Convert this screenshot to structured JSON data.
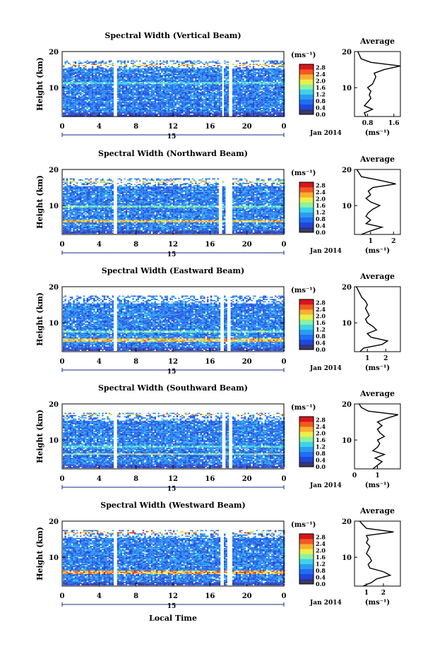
{
  "shared": {
    "ylabel": "Height (km)",
    "x_ticks": [
      "0",
      "4",
      "8",
      "12",
      "16",
      "20",
      "0"
    ],
    "y_ticks": [
      "10",
      "20"
    ],
    "date_day": "15",
    "date_label": "Jan 2014",
    "colorbar_unit": "(ms⁻¹)",
    "colorbar_ticks": [
      "0.0",
      "0.4",
      "0.8",
      "1.2",
      "1.6",
      "2.0",
      "2.4",
      "2.8"
    ],
    "avg_title": "Average",
    "avg_xlabel": "(ms⁻¹)",
    "xlabel_bottom": "Local Time",
    "colors": {
      "colormap": [
        "#2b2f8f",
        "#1f47d8",
        "#1f6ef5",
        "#2a9df0",
        "#3dd4e8",
        "#8ff0a0",
        "#e8f04a",
        "#f7b030",
        "#f05a20",
        "#d8141c"
      ],
      "lowest_bin": "#3a3a60"
    }
  },
  "chart_data": [
    {
      "type": "heatmap",
      "title": "Spectral Width (Vertical Beam)",
      "x_range_hours": [
        0,
        24
      ],
      "y_range_km": [
        2,
        20
      ],
      "data_gaps_hours": [
        [
          5.4,
          5.9
        ],
        [
          17.2,
          17.5
        ],
        [
          17.9,
          18.3
        ]
      ],
      "layers_km": [
        [
          16.0,
          16.8,
          2.6
        ],
        [
          11.0,
          11.8,
          1.6
        ]
      ],
      "colorbar_range": [
        0.0,
        3.0
      ],
      "average_profile": {
        "xtick_labels": [
          "0.8",
          "1.6"
        ],
        "xlim": [
          0.4,
          1.8
        ],
        "height_km": [
          2,
          3,
          4,
          5,
          6,
          7,
          8,
          9,
          10,
          11,
          12,
          13,
          14,
          15,
          16,
          17,
          18,
          19,
          20
        ],
        "value": [
          0.75,
          0.7,
          0.95,
          0.7,
          0.8,
          0.9,
          0.85,
          0.9,
          0.8,
          0.95,
          1.0,
          1.05,
          1.0,
          1.3,
          1.8,
          0.9,
          0.6,
          0.55,
          0.5
        ]
      }
    },
    {
      "type": "heatmap",
      "title": "Spectral Width (Northward Beam)",
      "x_range_hours": [
        0,
        24
      ],
      "y_range_km": [
        2,
        20
      ],
      "data_gaps_hours": [
        [
          5.4,
          5.9
        ],
        [
          16.9,
          17.2
        ],
        [
          17.6,
          18.3
        ]
      ],
      "layers_km": [
        [
          16.5,
          17.0,
          2.4
        ],
        [
          5.5,
          6.2,
          2.6
        ],
        [
          9.5,
          10.2,
          1.8
        ]
      ],
      "colorbar_range": [
        0.0,
        3.0
      ],
      "average_profile": {
        "xtick_labels": [
          "1",
          "2"
        ],
        "xlim": [
          0.3,
          2.3
        ],
        "height_km": [
          2,
          3,
          4,
          5,
          6,
          7,
          8,
          9,
          10,
          11,
          12,
          13,
          14,
          15,
          16,
          17,
          18,
          19,
          20
        ],
        "value": [
          0.6,
          1.0,
          1.5,
          0.8,
          1.0,
          0.8,
          0.9,
          1.1,
          1.4,
          1.0,
          0.8,
          1.0,
          0.9,
          1.1,
          2.1,
          1.4,
          0.6,
          0.5,
          0.4
        ]
      }
    },
    {
      "type": "heatmap",
      "title": "Spectral Width (Eastward Beam)",
      "x_range_hours": [
        0,
        24
      ],
      "y_range_km": [
        2,
        20
      ],
      "data_gaps_hours": [
        [
          5.4,
          5.9
        ],
        [
          17.0,
          17.4
        ],
        [
          17.8,
          18.2
        ]
      ],
      "layers_km": [
        [
          5.0,
          5.8,
          2.6
        ],
        [
          7.5,
          8.0,
          1.8
        ]
      ],
      "colorbar_range": [
        0.0,
        3.0
      ],
      "average_profile": {
        "xtick_labels": [
          "1",
          "2"
        ],
        "xlim": [
          0.3,
          2.8
        ],
        "height_km": [
          2,
          3,
          4,
          5,
          6,
          7,
          8,
          9,
          10,
          11,
          12,
          13,
          14,
          15,
          16,
          17,
          18,
          19,
          20
        ],
        "value": [
          0.6,
          0.8,
          1.8,
          2.1,
          1.2,
          1.0,
          1.5,
          1.3,
          1.0,
          0.9,
          1.1,
          1.0,
          0.9,
          1.0,
          0.9,
          0.7,
          0.6,
          0.5,
          0.4
        ]
      }
    },
    {
      "type": "heatmap",
      "title": "Spectral Width (Southward Beam)",
      "x_range_hours": [
        0,
        24
      ],
      "y_range_km": [
        2,
        20
      ],
      "data_gaps_hours": [
        [
          5.4,
          5.9
        ],
        [
          17.2,
          17.6
        ],
        [
          17.9,
          18.3
        ]
      ],
      "layers_km": [
        [
          17.0,
          17.5,
          2.6
        ],
        [
          6.0,
          6.5,
          2.2
        ],
        [
          8.0,
          8.5,
          1.6
        ]
      ],
      "colorbar_range": [
        0.0,
        3.0
      ],
      "average_profile": {
        "xtick_labels": [
          "0",
          "1"
        ],
        "xlim": [
          0.0,
          2.0
        ],
        "height_km": [
          2,
          3,
          4,
          5,
          6,
          7,
          8,
          9,
          10,
          11,
          12,
          13,
          14,
          15,
          16,
          17,
          18,
          19,
          20
        ],
        "value": [
          0.8,
          1.0,
          1.2,
          0.9,
          1.3,
          0.8,
          1.0,
          1.1,
          1.0,
          1.3,
          1.1,
          1.0,
          1.2,
          1.0,
          1.4,
          1.9,
          0.6,
          0.3,
          0.2
        ]
      }
    },
    {
      "type": "heatmap",
      "title": "Spectral Width (Westward Beam)",
      "x_range_hours": [
        0,
        24
      ],
      "y_range_km": [
        2,
        20
      ],
      "data_gaps_hours": [
        [
          5.4,
          5.9
        ],
        [
          17.0,
          17.4
        ],
        [
          17.8,
          18.3
        ]
      ],
      "layers_km": [
        [
          5.5,
          6.3,
          2.8
        ],
        [
          16.8,
          17.3,
          2.8
        ]
      ],
      "colorbar_range": [
        0.0,
        3.0
      ],
      "average_profile": {
        "xtick_labels": [
          "1",
          "2"
        ],
        "xlim": [
          0.3,
          3.0
        ],
        "height_km": [
          2,
          3,
          4,
          5,
          6,
          7,
          8,
          9,
          10,
          11,
          12,
          13,
          14,
          15,
          16,
          17,
          18,
          19,
          20
        ],
        "value": [
          0.8,
          1.3,
          1.6,
          2.4,
          2.0,
          1.2,
          1.1,
          1.3,
          1.2,
          1.0,
          1.1,
          1.2,
          1.0,
          1.1,
          1.0,
          2.6,
          1.0,
          0.8,
          0.6
        ]
      }
    }
  ]
}
